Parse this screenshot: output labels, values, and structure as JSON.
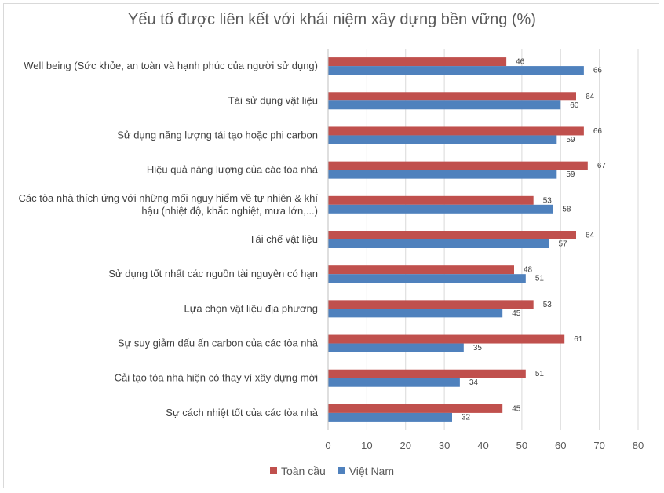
{
  "chart_data": {
    "type": "bar",
    "orientation": "horizontal",
    "title": "Yếu tố được liên kết với khái niệm xây dựng bền vững (%)",
    "categories": [
      [
        "Well being (Sức khỏe, an toàn và hạnh phúc của người sử dụng)"
      ],
      [
        "Tái sử dụng vật liệu"
      ],
      [
        "Sử dụng năng lượng tái tạo hoặc phi carbon"
      ],
      [
        "Hiệu quả năng lượng của các tòa nhà"
      ],
      [
        "Các tòa nhà thích ứng với những mối nguy hiểm về tự nhiên & khí",
        "hậu (nhiệt độ, khắc nghiệt, mưa lớn,...)"
      ],
      [
        "Tái chế vật liệu"
      ],
      [
        "Sử dụng tốt nhất các nguồn tài nguyên có hạn"
      ],
      [
        "Lựa chọn vật liệu địa phương"
      ],
      [
        "Sự suy giảm dấu ấn carbon của các tòa nhà"
      ],
      [
        "Cải tạo tòa nhà hiện có thay vì xây dựng mới"
      ],
      [
        "Sự cách nhiệt tốt của các tòa nhà"
      ]
    ],
    "series": [
      {
        "name": "Toàn cầu",
        "color": "#c0504d",
        "values": [
          46,
          64,
          66,
          67,
          53,
          64,
          48,
          53,
          61,
          51,
          45
        ]
      },
      {
        "name": "Việt Nam",
        "color": "#4f81bd",
        "values": [
          66,
          60,
          59,
          59,
          58,
          57,
          51,
          45,
          35,
          34,
          32
        ]
      }
    ],
    "xlim": [
      0,
      80
    ],
    "xticks": [
      0,
      10,
      20,
      30,
      40,
      50,
      60,
      70,
      80
    ],
    "grid": true,
    "legend_position": "bottom"
  }
}
